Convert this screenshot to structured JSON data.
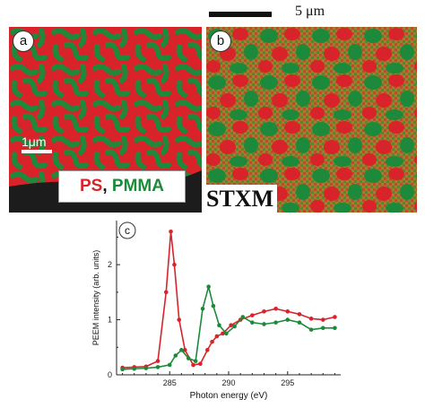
{
  "panel_a": {
    "label": "a",
    "scale_text": "1μm",
    "legend_ps": "PS",
    "legend_sep": ",",
    "legend_pmma": "PMMA"
  },
  "panel_b": {
    "label": "b",
    "scale_text": "5 μm",
    "method": "STXM"
  },
  "colors": {
    "ps": "#d8232a",
    "pmma": "#1d8a3b"
  },
  "chart_data": {
    "type": "line",
    "panel_label": "c",
    "xlabel": "Photon energy (eV)",
    "ylabel": "PEEM intensity (arb. units)",
    "xlim": [
      280.5,
      299.5
    ],
    "ylim": [
      0,
      2.8
    ],
    "xticks": [
      285,
      290,
      295
    ],
    "xtick_labels": [
      "285",
      "290",
      "295"
    ],
    "yticks": [
      0,
      1,
      2
    ],
    "ytick_labels": [
      "0",
      "1",
      "2"
    ],
    "grid": false,
    "series": [
      {
        "color": "#d8232a",
        "x": [
          281,
          282,
          283,
          284,
          284.7,
          285.1,
          285.4,
          285.8,
          286.3,
          287,
          287.6,
          288.2,
          288.6,
          289,
          289.5,
          290.2,
          291,
          292,
          293,
          294,
          295,
          296,
          297,
          298,
          299
        ],
        "y": [
          0.13,
          0.14,
          0.15,
          0.25,
          1.5,
          2.6,
          2.0,
          1.0,
          0.45,
          0.18,
          0.2,
          0.45,
          0.6,
          0.7,
          0.75,
          0.9,
          1.0,
          1.08,
          1.15,
          1.2,
          1.15,
          1.1,
          1.02,
          1.0,
          1.05
        ]
      },
      {
        "color": "#1d8a3b",
        "x": [
          281,
          282,
          283,
          284,
          285,
          285.5,
          286,
          286.6,
          287.2,
          287.8,
          288.3,
          288.7,
          289.2,
          289.8,
          290.5,
          291.2,
          292,
          293,
          294,
          295,
          296,
          297,
          298,
          299
        ],
        "y": [
          0.1,
          0.11,
          0.12,
          0.14,
          0.18,
          0.35,
          0.45,
          0.3,
          0.25,
          1.2,
          1.6,
          1.25,
          0.9,
          0.75,
          0.88,
          1.05,
          0.95,
          0.92,
          0.95,
          1.0,
          0.95,
          0.82,
          0.85,
          0.85
        ]
      }
    ]
  }
}
